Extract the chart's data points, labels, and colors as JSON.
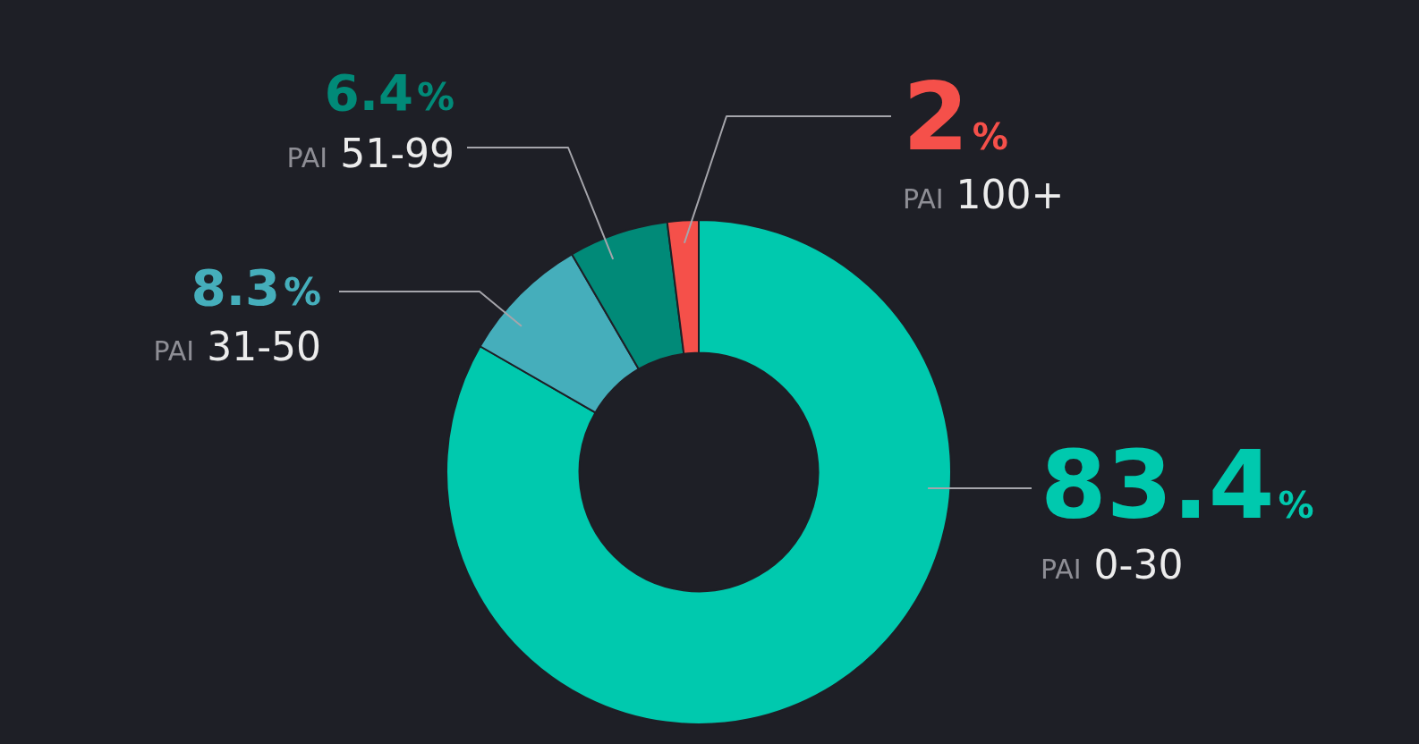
{
  "chart_data": {
    "type": "donut",
    "categories": [
      "PAI 0-30",
      "PAI 31-50",
      "PAI 51-99",
      "PAI 100+"
    ],
    "values": [
      83.4,
      8.3,
      6.4,
      2
    ],
    "colors": [
      "#00c9ae",
      "#45aebb",
      "#018a78",
      "#f5504a"
    ],
    "value_labels": [
      "83.4%",
      "8.3%",
      "6.4%",
      "2%"
    ]
  }
}
